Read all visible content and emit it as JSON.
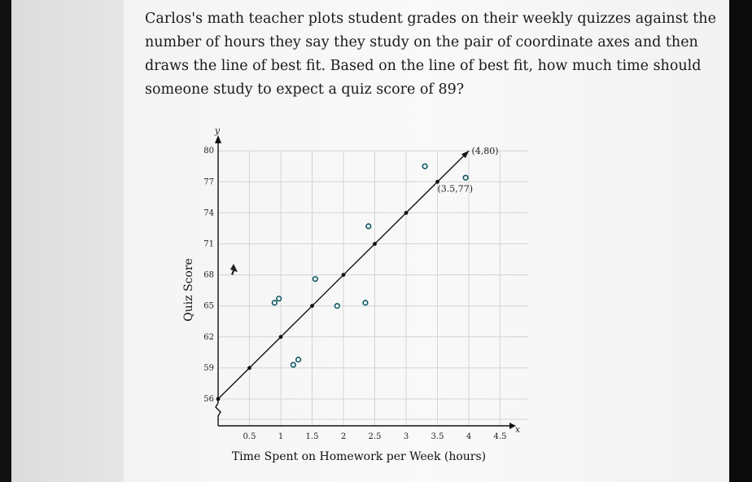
{
  "question": {
    "text": "Carlos's math teacher plots student grades on their weekly quizzes against the number of hours they say they study on the pair of coordinate axes and then draws the line of best fit. Based on the line of best fit, how much time should someone study to expect a quiz score of 89?"
  },
  "chart_data": {
    "type": "scatter",
    "xlabel": "Time Spent on Homework per Week (hours)",
    "ylabel": "Quiz Score",
    "x_axis_letter": "x",
    "y_axis_letter": "y",
    "xlim": [
      0,
      4.5
    ],
    "ylim": [
      56,
      80
    ],
    "x_ticks": [
      0.5,
      1,
      1.5,
      2,
      2.5,
      3,
      3.5,
      4,
      4.5
    ],
    "x_tick_labels": [
      "0.5",
      "1",
      "1.5",
      "2",
      "2.5",
      "3",
      "3.5",
      "4",
      "4.5"
    ],
    "y_ticks": [
      56,
      59,
      62,
      65,
      68,
      71,
      74,
      77,
      80
    ],
    "y_tick_labels": [
      "56",
      "59",
      "62",
      "65",
      "68",
      "71",
      "74",
      "77",
      "80"
    ],
    "grid": true,
    "y_axis_break": true,
    "points": [
      {
        "x": 0.9,
        "y": 65.3
      },
      {
        "x": 0.97,
        "y": 65.7
      },
      {
        "x": 1.55,
        "y": 67.6
      },
      {
        "x": 1.9,
        "y": 65.0
      },
      {
        "x": 2.35,
        "y": 65.3
      },
      {
        "x": 2.4,
        "y": 72.7
      },
      {
        "x": 1.2,
        "y": 59.3
      },
      {
        "x": 1.28,
        "y": 59.8
      },
      {
        "x": 3.3,
        "y": 78.5
      },
      {
        "x": 3.95,
        "y": 77.4
      }
    ],
    "best_fit_line": {
      "slope": 6,
      "intercept": 56,
      "x_range": [
        0,
        4
      ],
      "marked_points": [
        {
          "x": 0,
          "y": 56
        },
        {
          "x": 0.5,
          "y": 59
        },
        {
          "x": 1,
          "y": 62
        },
        {
          "x": 1.5,
          "y": 65
        },
        {
          "x": 2,
          "y": 68
        },
        {
          "x": 2.5,
          "y": 71
        },
        {
          "x": 3,
          "y": 74
        },
        {
          "x": 3.5,
          "y": 77
        }
      ]
    },
    "annotations": [
      {
        "text": "(4,80)",
        "x": 4,
        "y": 80
      },
      {
        "text": "(3.5,77)",
        "x": 3.5,
        "y": 77
      }
    ],
    "colors": {
      "points": "#0a5560",
      "line": "#111111",
      "grid": "#d4d4d4"
    }
  }
}
